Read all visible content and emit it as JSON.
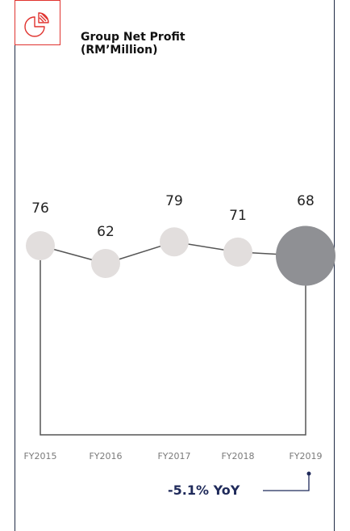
{
  "title": {
    "line1": "Group Net Profit",
    "line2": "(RM’Million)"
  },
  "icon": "pie-chart-icon",
  "colors": {
    "accent": "#e0332f",
    "navy": "#1f2a5a",
    "bubble": "#e2dedd",
    "highlight": "#8f9094",
    "connector": "#555555"
  },
  "yoy_label": "-5.1% YoY",
  "chart_data": {
    "type": "line",
    "categories": [
      "FY2015",
      "FY2016",
      "FY2017",
      "FY2018",
      "FY2019"
    ],
    "values": [
      76,
      62,
      79,
      71,
      68
    ],
    "highlight_index": 4,
    "title": "Group Net Profit (RM’Million)",
    "annotation": "-5.1% YoY"
  }
}
